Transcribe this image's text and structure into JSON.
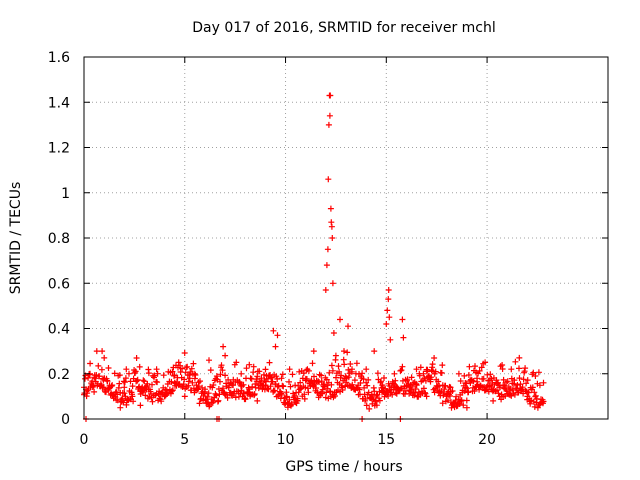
{
  "chart_data": {
    "type": "scatter",
    "title": "Day 017 of 2016, SRMTID for receiver mchl",
    "xlabel": "GPS time / hours",
    "ylabel": "SRMTID / TECUs",
    "xlim": [
      0,
      26
    ],
    "ylim": [
      0,
      1.6
    ],
    "x_ticks": [
      0,
      5,
      10,
      15,
      20
    ],
    "x_tick_labels": [
      "0",
      "5",
      "10",
      "15",
      "20"
    ],
    "y_ticks": [
      0,
      0.2,
      0.4,
      0.6,
      0.8,
      1.0,
      1.2,
      1.4,
      1.6
    ],
    "y_tick_labels": [
      "0",
      "0.2",
      "0.4",
      "0.6",
      "0.8",
      "1",
      "1.2",
      "1.4",
      "1.6"
    ],
    "grid": true,
    "marker": "+",
    "series": [
      {
        "name": "SRMTID",
        "color": "#ff0000",
        "baseline_x_range": [
          0,
          22.8
        ],
        "baseline_y_range": [
          0.04,
          0.3
        ],
        "points": [
          [
            0.0,
            0.14
          ],
          [
            0.1,
            0.0
          ],
          [
            0.3,
            0.2
          ],
          [
            0.5,
            0.12
          ],
          [
            0.9,
            0.3
          ],
          [
            1.0,
            0.27
          ],
          [
            1.4,
            0.15
          ],
          [
            1.8,
            0.05
          ],
          [
            2.0,
            0.14
          ],
          [
            2.1,
            0.22
          ],
          [
            2.4,
            0.1
          ],
          [
            2.8,
            0.06
          ],
          [
            3.2,
            0.13
          ],
          [
            3.6,
            0.22
          ],
          [
            4.0,
            0.1
          ],
          [
            4.5,
            0.16
          ],
          [
            4.7,
            0.25
          ],
          [
            5.0,
            0.1
          ],
          [
            5.5,
            0.2
          ],
          [
            6.0,
            0.12
          ],
          [
            6.2,
            0.26
          ],
          [
            6.6,
            0.0
          ],
          [
            6.7,
            0.0
          ],
          [
            6.9,
            0.32
          ],
          [
            7.0,
            0.28
          ],
          [
            7.4,
            0.15
          ],
          [
            7.8,
            0.2
          ],
          [
            8.2,
            0.24
          ],
          [
            8.6,
            0.08
          ],
          [
            9.0,
            0.15
          ],
          [
            9.4,
            0.39
          ],
          [
            9.5,
            0.32
          ],
          [
            9.6,
            0.37
          ],
          [
            9.8,
            0.18
          ],
          [
            10.2,
            0.22
          ],
          [
            10.6,
            0.08
          ],
          [
            11.0,
            0.17
          ],
          [
            11.4,
            0.3
          ],
          [
            11.8,
            0.12
          ],
          [
            12.0,
            0.57
          ],
          [
            12.05,
            0.68
          ],
          [
            12.1,
            0.75
          ],
          [
            12.12,
            1.06
          ],
          [
            12.15,
            1.3
          ],
          [
            12.18,
            1.43
          ],
          [
            12.2,
            1.34
          ],
          [
            12.22,
            1.43
          ],
          [
            12.25,
            0.93
          ],
          [
            12.27,
            0.87
          ],
          [
            12.3,
            0.85
          ],
          [
            12.32,
            0.8
          ],
          [
            12.35,
            0.6
          ],
          [
            12.4,
            0.38
          ],
          [
            12.5,
            0.28
          ],
          [
            12.7,
            0.44
          ],
          [
            12.9,
            0.3
          ],
          [
            13.1,
            0.41
          ],
          [
            13.3,
            0.22
          ],
          [
            13.6,
            0.15
          ],
          [
            13.8,
            0.0
          ],
          [
            14.0,
            0.22
          ],
          [
            14.4,
            0.3
          ],
          [
            14.8,
            0.15
          ],
          [
            15.0,
            0.42
          ],
          [
            15.05,
            0.48
          ],
          [
            15.1,
            0.53
          ],
          [
            15.12,
            0.57
          ],
          [
            15.15,
            0.45
          ],
          [
            15.2,
            0.35
          ],
          [
            15.4,
            0.2
          ],
          [
            15.7,
            0.0
          ],
          [
            15.8,
            0.44
          ],
          [
            15.85,
            0.36
          ],
          [
            16.2,
            0.15
          ],
          [
            16.5,
            0.22
          ],
          [
            17.0,
            0.1
          ],
          [
            17.4,
            0.2
          ],
          [
            17.8,
            0.07
          ],
          [
            18.2,
            0.12
          ],
          [
            18.6,
            0.2
          ],
          [
            19.0,
            0.05
          ],
          [
            19.5,
            0.18
          ],
          [
            19.9,
            0.25
          ],
          [
            20.3,
            0.08
          ],
          [
            20.8,
            0.15
          ],
          [
            21.2,
            0.22
          ],
          [
            21.6,
            0.27
          ],
          [
            22.0,
            0.1
          ],
          [
            22.4,
            0.19
          ],
          [
            22.8,
            0.16
          ]
        ]
      }
    ]
  }
}
